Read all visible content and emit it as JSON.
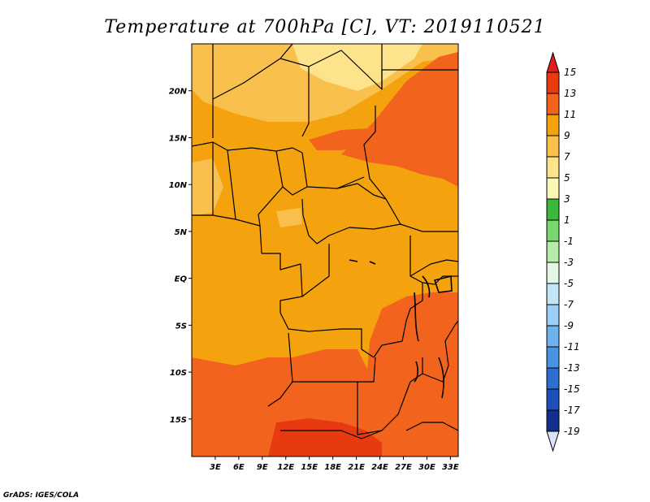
{
  "title": "Temperature at 700hPa [C], VT: 2019110521",
  "credit": "GrADS: IGES/COLA",
  "map": {
    "lat_range": [
      -19,
      25
    ],
    "lon_range": [
      0,
      34
    ],
    "lat_ticks": [
      {
        "value": 20,
        "label": "20N"
      },
      {
        "value": 15,
        "label": "15N"
      },
      {
        "value": 10,
        "label": "10N"
      },
      {
        "value": 5,
        "label": "5N"
      },
      {
        "value": 0,
        "label": "EQ"
      },
      {
        "value": -5,
        "label": "5S"
      },
      {
        "value": -10,
        "label": "10S"
      },
      {
        "value": -15,
        "label": "15S"
      }
    ],
    "lon_ticks": [
      {
        "value": 3,
        "label": "3E"
      },
      {
        "value": 6,
        "label": "6E"
      },
      {
        "value": 9,
        "label": "9E"
      },
      {
        "value": 12,
        "label": "12E"
      },
      {
        "value": 15,
        "label": "15E"
      },
      {
        "value": 18,
        "label": "18E"
      },
      {
        "value": 21,
        "label": "21E"
      },
      {
        "value": 24,
        "label": "24E"
      },
      {
        "value": 27,
        "label": "27E"
      },
      {
        "value": 30,
        "label": "30E"
      },
      {
        "value": 33,
        "label": "33E"
      }
    ],
    "background_color": "#f5a20f"
  },
  "colorbar": {
    "levels": [
      "15",
      "13",
      "11",
      "9",
      "7",
      "5",
      "3",
      "1",
      "-1",
      "-3",
      "-5",
      "-7",
      "-9",
      "-11",
      "-13",
      "-15",
      "-17",
      "-19"
    ],
    "colors": [
      "#e83a10",
      "#f2641d",
      "#f5a20f",
      "#fac04d",
      "#fde38c",
      "#fdf7b8",
      "#3cb83c",
      "#7ad66e",
      "#b6eba8",
      "#e4f7e4",
      "#c3e6f7",
      "#9ccff5",
      "#6fb3ee",
      "#4a93e0",
      "#2d6fd0",
      "#1d4fb8",
      "#132f8a",
      "#0b1a5c"
    ],
    "top_arrow_color": "#e01e1e",
    "bottom_arrow_color": "#dde2f8"
  }
}
